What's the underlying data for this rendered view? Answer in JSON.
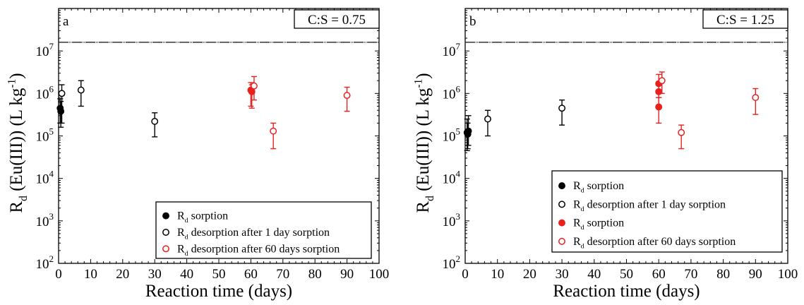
{
  "chart_data": [
    {
      "type": "scatter",
      "panel_label": "a",
      "ratio_label": "C:S = 0.75",
      "xlabel": "Reaction time (days)",
      "ylabel": {
        "main": "R",
        "sub": "d",
        "rest": " (Eu(III))  (L kg",
        "sup": "-1",
        "close": ")"
      },
      "xlim": [
        0,
        100
      ],
      "ylim": [
        100,
        100000000
      ],
      "yscale": "log",
      "xticks": [
        "0",
        "10",
        "20",
        "30",
        "40",
        "50",
        "60",
        "70",
        "80",
        "90",
        "100"
      ],
      "yticks": [
        {
          "base": "10",
          "exp": "2"
        },
        {
          "base": "10",
          "exp": "3"
        },
        {
          "base": "10",
          "exp": "4"
        },
        {
          "base": "10",
          "exp": "5"
        },
        {
          "base": "10",
          "exp": "6"
        },
        {
          "base": "10",
          "exp": "7"
        }
      ],
      "detection_limit": 16000000,
      "legend": [
        {
          "style": "filled-black",
          "main": "R",
          "sub": "d",
          "rest": " sorption"
        },
        {
          "style": "open-black",
          "main": "R",
          "sub": "d",
          "rest": " desorption after 1 day sorption"
        },
        {
          "style": "open-red",
          "main": "R",
          "sub": "d",
          "rest": " desorption after 60 days sorption"
        }
      ],
      "series": [
        {
          "style": "filled-black",
          "points": [
            {
              "x": 0.5,
              "y": 450000,
              "lo": 200000,
              "hi": 750000
            },
            {
              "x": 0.7,
              "y": 380000,
              "lo": 160000,
              "hi": 650000
            }
          ]
        },
        {
          "style": "open-black",
          "points": [
            {
              "x": 1,
              "y": 1000000,
              "lo": 200000,
              "hi": 1600000
            },
            {
              "x": 7,
              "y": 1200000,
              "lo": 500000,
              "hi": 2000000
            },
            {
              "x": 30,
              "y": 220000,
              "lo": 95000,
              "hi": 350000
            }
          ]
        },
        {
          "style": "filled-red",
          "points": [
            {
              "x": 60,
              "y": 1200000,
              "lo": 500000,
              "hi": 1800000
            },
            {
              "x": 60.3,
              "y": 1100000,
              "lo": 450000,
              "hi": 1600000
            }
          ]
        },
        {
          "style": "open-red",
          "points": [
            {
              "x": 61,
              "y": 1500000,
              "lo": 700000,
              "hi": 2500000
            },
            {
              "x": 67,
              "y": 130000,
              "lo": 50000,
              "hi": 200000
            },
            {
              "x": 90,
              "y": 900000,
              "lo": 380000,
              "hi": 1400000
            }
          ]
        }
      ]
    },
    {
      "type": "scatter",
      "panel_label": "b",
      "ratio_label": "C:S = 1.25",
      "xlabel": "Reaction time (days)",
      "ylabel": {
        "main": "R",
        "sub": "d",
        "rest": " (Eu(III))  (L kg",
        "sup": "-1",
        "close": ")"
      },
      "xlim": [
        0,
        100
      ],
      "ylim": [
        100,
        100000000
      ],
      "yscale": "log",
      "xticks": [
        "0",
        "10",
        "20",
        "30",
        "40",
        "50",
        "60",
        "70",
        "80",
        "90",
        "100"
      ],
      "yticks": [
        {
          "base": "10",
          "exp": "2"
        },
        {
          "base": "10",
          "exp": "3"
        },
        {
          "base": "10",
          "exp": "4"
        },
        {
          "base": "10",
          "exp": "5"
        },
        {
          "base": "10",
          "exp": "6"
        },
        {
          "base": "10",
          "exp": "7"
        }
      ],
      "detection_limit": 16000000,
      "legend": [
        {
          "style": "filled-black",
          "main": "R",
          "sub": "d",
          "rest": " sorption"
        },
        {
          "style": "open-black",
          "main": "R",
          "sub": "d",
          "rest": " desorption after 1 day sorption"
        },
        {
          "style": "filled-red",
          "main": "R",
          "sub": "d",
          "rest": " sorption"
        },
        {
          "style": "open-red",
          "main": "R",
          "sub": "d",
          "rest": " desorption after 60 days sorption"
        }
      ],
      "series": [
        {
          "style": "filled-black",
          "points": [
            {
              "x": 0.6,
              "y": 120000,
              "lo": 45000,
              "hi": 250000
            },
            {
              "x": 0.8,
              "y": 110000,
              "lo": 50000,
              "hi": 200000
            },
            {
              "x": 1.0,
              "y": 130000,
              "lo": 60000,
              "hi": 300000
            }
          ]
        },
        {
          "style": "open-black",
          "points": [
            {
              "x": 7,
              "y": 250000,
              "lo": 100000,
              "hi": 400000
            },
            {
              "x": 30,
              "y": 450000,
              "lo": 180000,
              "hi": 700000
            }
          ]
        },
        {
          "style": "filled-red",
          "points": [
            {
              "x": 60,
              "y": 1700000,
              "lo": 800000,
              "hi": 2800000
            },
            {
              "x": 60,
              "y": 1100000,
              "lo": 500000,
              "hi": 1700000
            },
            {
              "x": 60,
              "y": 480000,
              "lo": 200000,
              "hi": 800000
            }
          ]
        },
        {
          "style": "open-red",
          "points": [
            {
              "x": 61,
              "y": 2000000,
              "lo": 1000000,
              "hi": 3200000
            },
            {
              "x": 67,
              "y": 120000,
              "lo": 50000,
              "hi": 180000
            },
            {
              "x": 90,
              "y": 800000,
              "lo": 320000,
              "hi": 1300000
            }
          ]
        }
      ]
    }
  ]
}
